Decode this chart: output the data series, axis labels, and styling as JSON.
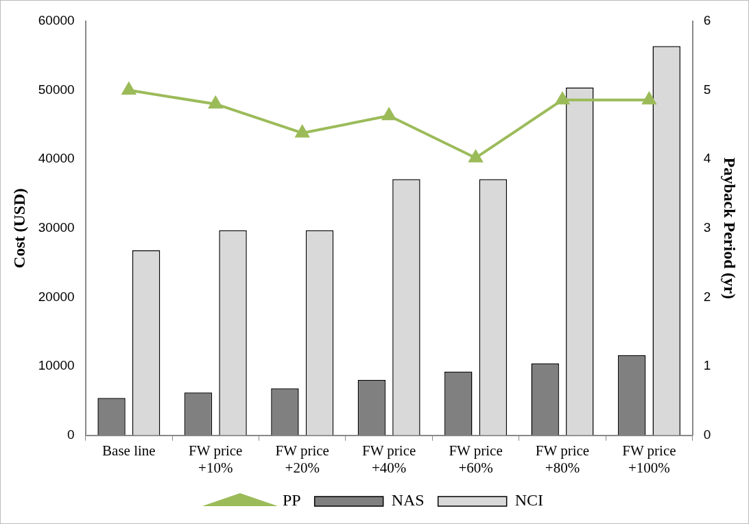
{
  "chart_data": {
    "type": "bar",
    "ylabel": "Cost (USD)",
    "y2label": "Payback Period (yr)",
    "categories": [
      "Base line",
      "FW price +10%",
      "FW price +20%",
      "FW price +40%",
      "FW price +60%",
      "FW price +80%",
      "FW price +100%"
    ],
    "series": [
      {
        "name": "NAS",
        "color": "#808080",
        "values": [
          5400,
          6200,
          6800,
          8000,
          9200,
          10400,
          11600
        ]
      },
      {
        "name": "NCI",
        "color": "#d9d9d9",
        "values": [
          26800,
          29700,
          29700,
          37100,
          37100,
          50400,
          56400
        ]
      },
      {
        "name": "PP",
        "type": "line",
        "axis": "y2",
        "color": "#9bbb59",
        "marker": "triangle",
        "values": [
          5.0,
          4.8,
          4.38,
          4.63,
          4.02,
          4.86,
          4.86
        ]
      }
    ],
    "ylim": [
      0,
      60000
    ],
    "yticks": [
      0,
      10000,
      20000,
      30000,
      40000,
      50000,
      60000
    ],
    "y2lim": [
      0,
      6
    ],
    "y2ticks": [
      0,
      1,
      2,
      3,
      4,
      5,
      6
    ],
    "grid": false,
    "legend": "bottom"
  }
}
